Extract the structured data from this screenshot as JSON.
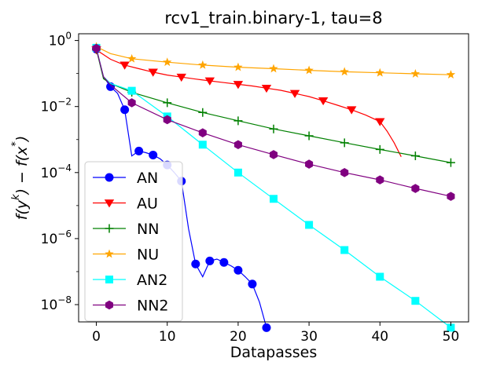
{
  "chart_data": {
    "type": "line",
    "title": "rcv1_train.binary-1, tau=8",
    "xlabel": "Datapasses",
    "ylabel": "f(y^k) − f(x^*)",
    "xscale": "linear",
    "yscale": "log",
    "xlim": [
      -2.5,
      52.5
    ],
    "ylim": [
      3e-09,
      1.6
    ],
    "xticks": [
      0,
      10,
      20,
      30,
      40,
      50
    ],
    "xtick_labels": [
      "0",
      "10",
      "20",
      "30",
      "40",
      "50"
    ],
    "yticks": [
      1,
      0.01,
      0.0001,
      1e-06,
      1e-08
    ],
    "ytick_labels": [
      {
        "base": "10",
        "exp": "0"
      },
      {
        "base": "10",
        "exp": "−2"
      },
      {
        "base": "10",
        "exp": "−4"
      },
      {
        "base": "10",
        "exp": "−6"
      },
      {
        "base": "10",
        "exp": "−8"
      }
    ],
    "grid": false,
    "legend": "lower-left",
    "series": [
      {
        "name": "AN",
        "color": "#0000ff",
        "marker": "circle",
        "x": [
          0,
          1,
          2,
          3,
          4,
          5,
          6,
          7,
          8,
          9,
          10,
          11,
          12,
          13,
          14,
          15,
          16,
          17,
          18,
          19,
          20,
          21,
          22,
          23,
          24
        ],
        "y": [
          0.55,
          0.08,
          0.04,
          0.025,
          0.008,
          0.00032,
          0.00045,
          0.0004,
          0.00034,
          0.00026,
          0.00017,
          0.0001,
          5.5e-05,
          2e-06,
          1.7e-07,
          7e-08,
          2.1e-07,
          2.4e-07,
          1.9e-07,
          1.5e-07,
          1.1e-07,
          7e-08,
          4.2e-08,
          1.2e-08,
          2e-09
        ],
        "markers_at": [
          0,
          2,
          4,
          6,
          8,
          10,
          12,
          14,
          16,
          18,
          20,
          22,
          24
        ]
      },
      {
        "name": "AU",
        "color": "#ff0000",
        "marker": "triangle-down",
        "x": [
          0,
          2,
          4,
          6,
          8,
          10,
          12,
          14,
          16,
          18,
          20,
          22,
          24,
          26,
          28,
          30,
          32,
          34,
          36,
          38,
          40,
          41,
          42,
          43
        ],
        "y": [
          0.52,
          0.27,
          0.18,
          0.14,
          0.11,
          0.09,
          0.078,
          0.068,
          0.06,
          0.053,
          0.047,
          0.042,
          0.036,
          0.031,
          0.025,
          0.02,
          0.015,
          0.011,
          0.008,
          0.0055,
          0.0035,
          0.0018,
          0.0008,
          0.0003
        ],
        "markers_at": [
          0,
          4,
          8,
          12,
          16,
          20,
          24,
          28,
          32,
          36,
          40
        ]
      },
      {
        "name": "NN",
        "color": "#008000",
        "marker": "plus",
        "x": [
          0,
          1,
          2,
          5,
          10,
          15,
          20,
          25,
          30,
          35,
          40,
          45,
          50
        ],
        "y": [
          0.55,
          0.07,
          0.05,
          0.027,
          0.013,
          0.0066,
          0.0037,
          0.0021,
          0.0013,
          0.0008,
          0.0005,
          0.00032,
          0.0002
        ],
        "markers_at": [
          0,
          5,
          10,
          15,
          20,
          25,
          30,
          35,
          40,
          45,
          50
        ]
      },
      {
        "name": "NU",
        "color": "#ffa500",
        "marker": "star",
        "x": [
          0,
          2,
          5,
          10,
          15,
          20,
          25,
          30,
          35,
          40,
          45,
          50
        ],
        "y": [
          0.65,
          0.4,
          0.28,
          0.22,
          0.18,
          0.155,
          0.14,
          0.125,
          0.113,
          0.105,
          0.098,
          0.092
        ],
        "markers_at": [
          0,
          5,
          10,
          15,
          20,
          25,
          30,
          35,
          40,
          45,
          50
        ]
      },
      {
        "name": "AN2",
        "color": "#00ffff",
        "marker": "square",
        "x": [
          0,
          1,
          2,
          5,
          10,
          15,
          20,
          25,
          30,
          35,
          40,
          45,
          50
        ],
        "y": [
          0.6,
          0.08,
          0.05,
          0.03,
          0.005,
          0.0007,
          0.0001,
          1.6e-05,
          2.6e-06,
          4.5e-07,
          7e-08,
          1.3e-08,
          2e-09
        ],
        "markers_at": [
          0,
          5,
          10,
          15,
          20,
          25,
          30,
          35,
          40,
          45,
          50
        ]
      },
      {
        "name": "NN2",
        "color": "#800080",
        "marker": "hexagon",
        "x": [
          0,
          1,
          2,
          5,
          10,
          15,
          20,
          25,
          30,
          35,
          40,
          45,
          50
        ],
        "y": [
          0.58,
          0.08,
          0.045,
          0.013,
          0.004,
          0.0016,
          0.0007,
          0.00035,
          0.00018,
          0.0001,
          6e-05,
          3.3e-05,
          1.9e-05
        ],
        "markers_at": [
          0,
          5,
          10,
          15,
          20,
          25,
          30,
          35,
          40,
          45,
          50
        ]
      }
    ]
  }
}
